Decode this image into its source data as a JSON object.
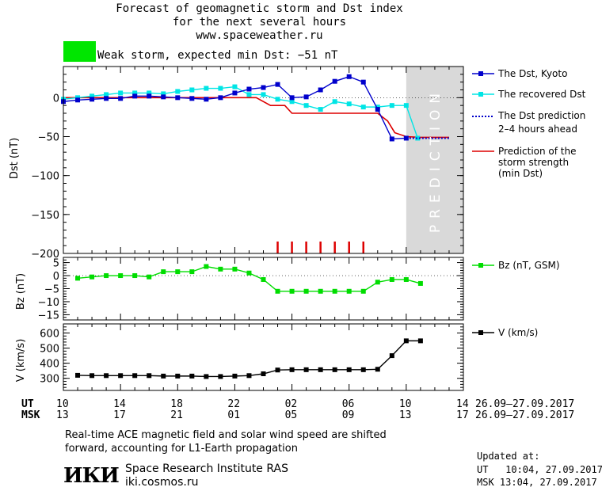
{
  "header": {
    "title_line1": "Forecast of geomagnetic storm and Dst index",
    "title_line2": "for the next several hours",
    "site": "www.spaceweather.ru"
  },
  "storm_banner": {
    "text": "Weak storm, expected min Dst: −51 nT",
    "color": "#00e600"
  },
  "colors": {
    "kyoto": "#0000cc",
    "recovered": "#00e5e5",
    "prediction_line": "#0000cc",
    "strength": "#dd0000",
    "bz": "#00dd00",
    "v": "#000000",
    "prediction_bg": "#d9d9d9"
  },
  "legend": {
    "kyoto": "The Dst, Kyoto",
    "recovered": "The recovered Dst",
    "prediction_line1": "The Dst prediction",
    "prediction_line2": "2–4 hours ahead",
    "strength_line1": "Prediction of the",
    "strength_line2": "storm strength",
    "strength_line3": "(min Dst)",
    "bz": "Bz (nT, GSM)",
    "v": "V (km/s)"
  },
  "prediction_label": "PREDICTION",
  "time_axis": {
    "ut_label": "UT",
    "msk_label": "MSK",
    "date_range": "26.09–27.09.2017",
    "ticks": [
      {
        "h": 0,
        "ut": "10",
        "msk": "13"
      },
      {
        "h": 4,
        "ut": "14",
        "msk": "17"
      },
      {
        "h": 8,
        "ut": "18",
        "msk": "21"
      },
      {
        "h": 12,
        "ut": "22",
        "msk": "01"
      },
      {
        "h": 16,
        "ut": "02",
        "msk": "05"
      },
      {
        "h": 20,
        "ut": "06",
        "msk": "09"
      },
      {
        "h": 24,
        "ut": "10",
        "msk": "13"
      },
      {
        "h": 28,
        "ut": "14",
        "msk": "17"
      }
    ]
  },
  "footer": {
    "note_line1": "Real-time ACE magnetic field and solar wind speed are shifted",
    "note_line2": "forward, accounting for L1-Earth propagation",
    "institute": "Space Research Institute RAS",
    "website": "iki.cosmos.ru",
    "logo_text": "ИКИ",
    "updated_label": "Updated at:",
    "updated_ut": "UT   10:04, 27.09.2017",
    "updated_msk": "MSK 13:04, 27.09.2017"
  },
  "chart_data": [
    {
      "type": "line",
      "name": "dst",
      "ylabel": "Dst (nT)",
      "xlim": [
        0,
        28
      ],
      "ylim": [
        -200,
        40
      ],
      "yticks": [
        0,
        -50,
        -100,
        -150,
        -200
      ],
      "prediction_start": 24,
      "series": [
        {
          "name": "The Dst, Kyoto",
          "x": [
            0,
            1,
            2,
            3,
            4,
            5,
            6,
            7,
            8,
            9,
            10,
            11,
            12,
            13,
            14,
            15,
            16,
            17,
            18,
            19,
            20,
            21,
            22,
            23,
            24
          ],
          "values": [
            -5,
            -3,
            -2,
            -1,
            -1,
            2,
            2,
            1,
            0,
            -1,
            -2,
            0,
            6,
            11,
            13,
            17,
            0,
            1,
            10,
            21,
            27,
            20,
            -15,
            -53,
            -52
          ]
        },
        {
          "name": "The recovered Dst",
          "x": [
            0,
            1,
            2,
            3,
            4,
            5,
            6,
            7,
            8,
            9,
            10,
            11,
            12,
            13,
            14,
            15,
            16,
            17,
            18,
            19,
            20,
            21,
            22,
            23,
            24,
            24.8
          ],
          "values": [
            -2,
            0,
            2,
            4,
            6,
            6,
            6,
            5,
            8,
            10,
            12,
            12,
            14,
            4,
            4,
            -2,
            -5,
            -10,
            -15,
            -5,
            -8,
            -12,
            -12,
            -10,
            -10,
            -52
          ]
        },
        {
          "name": "The Dst prediction 2–4 hours ahead",
          "x": [
            24,
            25,
            27
          ],
          "values": [
            -52,
            -52,
            -52
          ]
        },
        {
          "name": "Prediction of the storm strength (min Dst)",
          "x": [
            0,
            11.5,
            13.5,
            14.5,
            15.5,
            16,
            22,
            22.7,
            23.2,
            24,
            25,
            27
          ],
          "values": [
            0,
            0,
            0,
            -10,
            -10,
            -20,
            -20,
            -30,
            -45,
            -50,
            -51,
            -51
          ]
        }
      ],
      "storm_marks_x": [
        15,
        16,
        17,
        18,
        19,
        20,
        21
      ]
    },
    {
      "type": "line",
      "name": "bz",
      "ylabel": "Bz (nT)",
      "xlim": [
        0,
        28
      ],
      "ylim": [
        -17,
        7
      ],
      "yticks": [
        5,
        0,
        -5,
        -10,
        -15
      ],
      "series": [
        {
          "name": "Bz (nT, GSM)",
          "x": [
            1,
            2,
            3,
            4,
            5,
            6,
            7,
            8,
            9,
            10,
            11,
            12,
            13,
            14,
            15,
            16,
            17,
            18,
            19,
            20,
            21,
            22,
            23,
            24,
            25
          ],
          "values": [
            -1,
            -0.5,
            0,
            0,
            0,
            -0.5,
            1.5,
            1.5,
            1.5,
            3.5,
            2.5,
            2.5,
            1,
            -1.5,
            -6,
            -6,
            -6,
            -6,
            -6,
            -6,
            -6,
            -2.5,
            -1.5,
            -1.5,
            -3
          ]
        }
      ]
    },
    {
      "type": "line",
      "name": "v",
      "ylabel": "V (km/s)",
      "xlim": [
        0,
        28
      ],
      "ylim": [
        220,
        660
      ],
      "yticks": [
        600,
        500,
        400,
        300
      ],
      "series": [
        {
          "name": "V (km/s)",
          "x": [
            1,
            2,
            3,
            4,
            5,
            6,
            7,
            8,
            9,
            10,
            11,
            12,
            13,
            14,
            15,
            16,
            17,
            18,
            19,
            20,
            21,
            22,
            23,
            24,
            25
          ],
          "values": [
            320,
            318,
            318,
            318,
            318,
            318,
            315,
            315,
            315,
            312,
            312,
            315,
            318,
            330,
            355,
            357,
            357,
            357,
            357,
            357,
            357,
            360,
            450,
            548,
            548
          ]
        }
      ]
    }
  ]
}
